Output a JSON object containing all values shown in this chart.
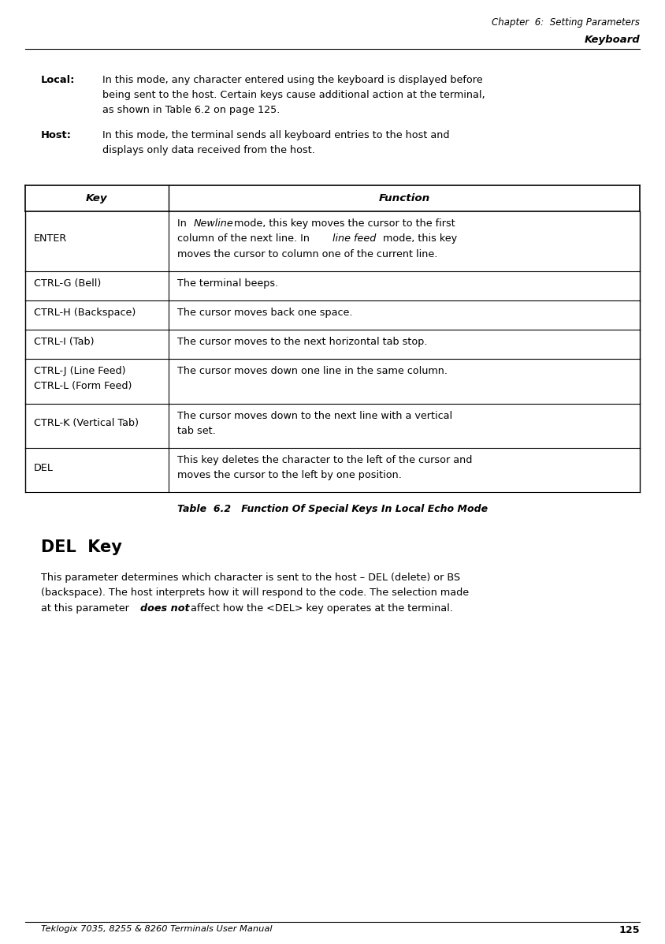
{
  "page_width": 8.44,
  "page_height": 11.97,
  "bg_color": "#ffffff",
  "header_line1": "Chapter  6:  Setting Parameters",
  "header_line2": "Keyboard",
  "local_label": "Local:",
  "local_text_lines": [
    "In this mode, any character entered using the keyboard is displayed before",
    "being sent to the host. Certain keys cause additional action at the terminal,",
    "as shown in Table 6.2 on page 125."
  ],
  "host_label": "Host:",
  "host_text_lines": [
    "In this mode, the terminal sends all keyboard entries to the host and",
    "displays only data received from the host."
  ],
  "table_caption": "Table  6.2   Function Of Special Keys In Local Echo Mode",
  "table_col_headers": [
    "Key",
    "Function"
  ],
  "table_rows": [
    {
      "key": "ENTER",
      "key_lines": [
        "ENTER"
      ],
      "func_lines": [
        [
          [
            "In ",
            "normal"
          ],
          [
            "Newline",
            "italic"
          ],
          [
            " mode, this key moves the cursor to the first",
            "normal"
          ]
        ],
        [
          [
            "column of the next line. In ",
            "normal"
          ],
          [
            "line feed",
            "italic"
          ],
          [
            " mode, this key",
            "normal"
          ]
        ],
        [
          [
            "moves the cursor to column one of the current line.",
            "normal"
          ]
        ]
      ]
    },
    {
      "key_lines": [
        "CTRL-G (Bell)"
      ],
      "func_lines": [
        [
          [
            "The terminal beeps.",
            "normal"
          ]
        ]
      ]
    },
    {
      "key_lines": [
        "CTRL-H (Backspace)"
      ],
      "func_lines": [
        [
          [
            "The cursor moves back one space.",
            "normal"
          ]
        ]
      ]
    },
    {
      "key_lines": [
        "CTRL-I (Tab)"
      ],
      "func_lines": [
        [
          [
            "The cursor moves to the next horizontal tab stop.",
            "normal"
          ]
        ]
      ]
    },
    {
      "key_lines": [
        "CTRL-J (Line Feed)",
        "CTRL-L (Form Feed)"
      ],
      "func_lines": [
        [
          [
            "The cursor moves down one line in the same column.",
            "normal"
          ]
        ]
      ]
    },
    {
      "key_lines": [
        "CTRL-K (Vertical Tab)"
      ],
      "func_lines": [
        [
          [
            "The cursor moves down to the next line with a vertical",
            "normal"
          ]
        ],
        [
          [
            "tab set.",
            "normal"
          ]
        ]
      ]
    },
    {
      "key_lines": [
        "DEL"
      ],
      "func_lines": [
        [
          [
            "This key deletes the character to the left of the cursor and",
            "normal"
          ]
        ],
        [
          [
            "moves the cursor to the left by one position.",
            "normal"
          ]
        ]
      ]
    }
  ],
  "del_key_heading": "DEL  Key",
  "del_key_lines": [
    [
      [
        "This parameter determines which character is sent to the host – DEL (delete) or BS",
        "normal"
      ]
    ],
    [
      [
        "(backspace). The host interprets how it will respond to the code. The selection made",
        "normal"
      ]
    ],
    [
      [
        "at this parameter ",
        "normal"
      ],
      [
        "does not",
        "bold_italic"
      ],
      [
        " affect how the <DEL> key operates at the terminal.",
        "normal"
      ]
    ]
  ],
  "footer_text": "Teklogix 7035, 8255 & 8260 Terminals User Manual",
  "footer_page": "125",
  "text_color": "#000000"
}
